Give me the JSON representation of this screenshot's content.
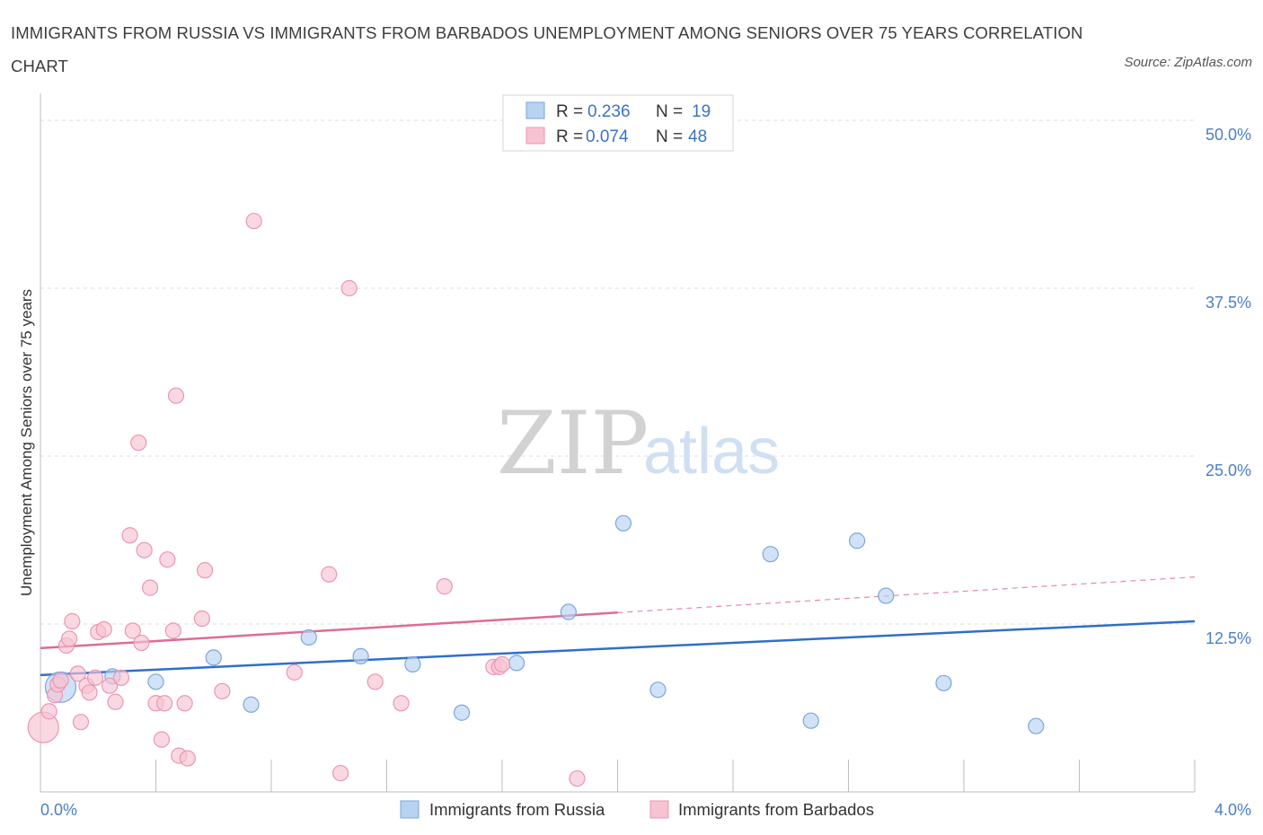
{
  "title": "IMMIGRANTS FROM RUSSIA VS IMMIGRANTS FROM BARBADOS UNEMPLOYMENT AMONG SENIORS OVER 75 YEARS CORRELATION CHART",
  "source": "Source: ZipAtlas.com",
  "watermark": {
    "zip": "ZIP",
    "atlas": "atlas"
  },
  "legend_top": {
    "rows": [
      {
        "r_label": "R =",
        "r_value": "0.236",
        "n_label": "N =",
        "n_value": "19"
      },
      {
        "r_label": "R =",
        "r_value": "0.074",
        "n_label": "N =",
        "n_value": "48"
      }
    ]
  },
  "legend_bottom": [
    "Immigrants from Russia",
    "Immigrants from Barbados"
  ],
  "colors": {
    "russia_fill": "#b8d2f2",
    "russia_stroke": "#7aa6df",
    "russia_line": "#2f6fcb",
    "barbados_fill": "#f7c3d2",
    "barbados_stroke": "#eb96b1",
    "barbados_line": "#e06b92",
    "tick_text": "#4a7ec9",
    "grid": "#dddddd"
  },
  "chart_data": {
    "type": "scatter",
    "title": "IMMIGRANTS FROM RUSSIA VS IMMIGRANTS FROM BARBADOS UNEMPLOYMENT AMONG SENIORS OVER 75 YEARS CORRELATION CHART",
    "xlabel": "",
    "ylabel": "Unemployment Among Seniors over 75 years",
    "xlim": [
      0.0,
      4.0
    ],
    "ylim": [
      0.0,
      50.0
    ],
    "x_ticks": [
      {
        "value": 0.0,
        "label": "0.0%"
      },
      {
        "value": 4.0,
        "label": "4.0%"
      }
    ],
    "y_ticks": [
      {
        "value": 12.5,
        "label": "12.5%"
      },
      {
        "value": 25.0,
        "label": "25.0%"
      },
      {
        "value": 37.5,
        "label": "37.5%"
      },
      {
        "value": 50.0,
        "label": "50.0%"
      }
    ],
    "series": [
      {
        "name": "Immigrants from Russia",
        "R": 0.236,
        "N": 19,
        "trend": {
          "x0": 0.0,
          "y0": 8.7,
          "x1": 4.0,
          "y1": 12.7,
          "dashed_from": null
        },
        "points": [
          {
            "x": 0.07,
            "y": 7.8,
            "big": true
          },
          {
            "x": 0.25,
            "y": 8.6
          },
          {
            "x": 0.4,
            "y": 8.2
          },
          {
            "x": 0.6,
            "y": 10.0
          },
          {
            "x": 0.73,
            "y": 6.5
          },
          {
            "x": 0.93,
            "y": 11.5
          },
          {
            "x": 1.11,
            "y": 10.1
          },
          {
            "x": 1.29,
            "y": 9.5
          },
          {
            "x": 1.46,
            "y": 5.9
          },
          {
            "x": 1.65,
            "y": 9.6
          },
          {
            "x": 1.83,
            "y": 13.4
          },
          {
            "x": 2.02,
            "y": 20.0
          },
          {
            "x": 2.14,
            "y": 7.6
          },
          {
            "x": 2.53,
            "y": 17.7
          },
          {
            "x": 2.67,
            "y": 5.3
          },
          {
            "x": 2.83,
            "y": 18.7
          },
          {
            "x": 2.93,
            "y": 14.6
          },
          {
            "x": 3.13,
            "y": 8.1
          },
          {
            "x": 3.45,
            "y": 4.9
          }
        ]
      },
      {
        "name": "Immigrants from Barbados",
        "R": 0.074,
        "N": 48,
        "trend": {
          "x0": 0.0,
          "y0": 10.7,
          "x1": 4.0,
          "y1": 16.0,
          "dashed_from": 2.0
        },
        "points": [
          {
            "x": 0.01,
            "y": 4.8,
            "big": true
          },
          {
            "x": 0.03,
            "y": 6.0
          },
          {
            "x": 0.05,
            "y": 7.2
          },
          {
            "x": 0.06,
            "y": 8.0
          },
          {
            "x": 0.07,
            "y": 8.3
          },
          {
            "x": 0.09,
            "y": 10.9
          },
          {
            "x": 0.1,
            "y": 11.4
          },
          {
            "x": 0.11,
            "y": 12.7
          },
          {
            "x": 0.13,
            "y": 8.8
          },
          {
            "x": 0.14,
            "y": 5.2
          },
          {
            "x": 0.16,
            "y": 7.9
          },
          {
            "x": 0.17,
            "y": 7.4
          },
          {
            "x": 0.19,
            "y": 8.5
          },
          {
            "x": 0.2,
            "y": 11.9
          },
          {
            "x": 0.22,
            "y": 12.1
          },
          {
            "x": 0.24,
            "y": 7.9
          },
          {
            "x": 0.26,
            "y": 6.7
          },
          {
            "x": 0.28,
            "y": 8.5
          },
          {
            "x": 0.31,
            "y": 19.1
          },
          {
            "x": 0.32,
            "y": 12.0
          },
          {
            "x": 0.34,
            "y": 26.0
          },
          {
            "x": 0.35,
            "y": 11.1
          },
          {
            "x": 0.36,
            "y": 18.0
          },
          {
            "x": 0.38,
            "y": 15.2
          },
          {
            "x": 0.4,
            "y": 6.6
          },
          {
            "x": 0.42,
            "y": 3.9
          },
          {
            "x": 0.43,
            "y": 6.6
          },
          {
            "x": 0.44,
            "y": 17.3
          },
          {
            "x": 0.46,
            "y": 12.0
          },
          {
            "x": 0.47,
            "y": 29.5
          },
          {
            "x": 0.48,
            "y": 2.7
          },
          {
            "x": 0.5,
            "y": 6.6
          },
          {
            "x": 0.51,
            "y": 2.5
          },
          {
            "x": 0.56,
            "y": 12.9
          },
          {
            "x": 0.57,
            "y": 16.5
          },
          {
            "x": 0.63,
            "y": 7.5
          },
          {
            "x": 0.74,
            "y": 42.5
          },
          {
            "x": 0.88,
            "y": 8.9
          },
          {
            "x": 1.0,
            "y": 16.2
          },
          {
            "x": 1.04,
            "y": 1.4
          },
          {
            "x": 1.07,
            "y": 37.5
          },
          {
            "x": 1.16,
            "y": 8.2
          },
          {
            "x": 1.25,
            "y": 6.6
          },
          {
            "x": 1.4,
            "y": 15.3
          },
          {
            "x": 1.57,
            "y": 9.3
          },
          {
            "x": 1.59,
            "y": 9.3
          },
          {
            "x": 1.86,
            "y": 1.0
          },
          {
            "x": 1.6,
            "y": 9.5
          }
        ]
      }
    ]
  }
}
